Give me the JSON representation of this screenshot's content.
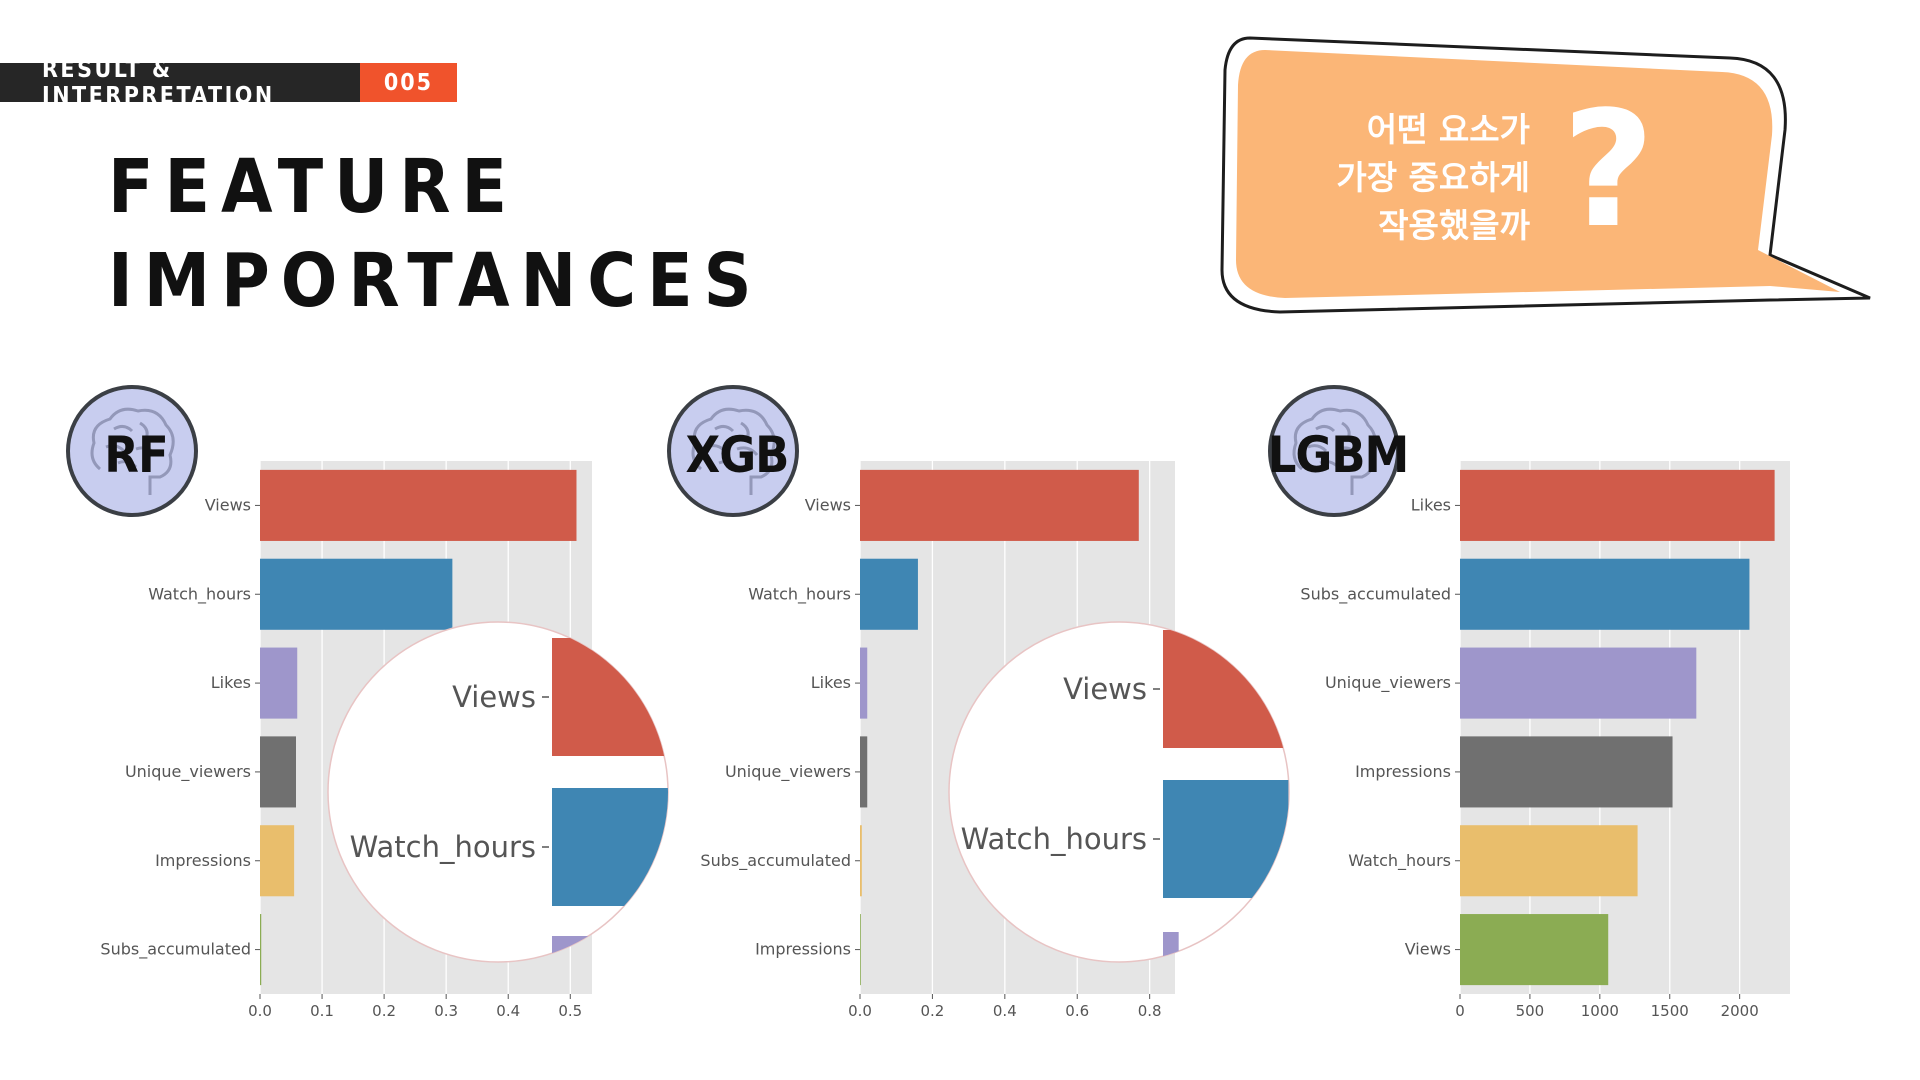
{
  "header": {
    "section_label": "RESULT & INTERPRETATION",
    "section_number": "005"
  },
  "title": {
    "line1": "FEATURE",
    "line2": "IMPORTANCES"
  },
  "speech_bubble": {
    "lines": [
      "어떤 요소가",
      "가장 중요하게",
      "작용했을까"
    ],
    "mark": "?",
    "color": "#fbb677"
  },
  "badges": [
    {
      "label": "RF",
      "icon": "brain-icon"
    },
    {
      "label": "XGB",
      "icon": "brain-icon"
    },
    {
      "label": "LGBM",
      "icon": "brain-icon"
    }
  ],
  "chart_data": [
    {
      "type": "bar",
      "orientation": "horizontal",
      "model": "RF",
      "categories": [
        "Views",
        "Watch_hours",
        "Likes",
        "Unique_viewers",
        "Impressions",
        "Subs_accumulated"
      ],
      "values": [
        0.51,
        0.31,
        0.06,
        0.058,
        0.055,
        0.002
      ],
      "colors": [
        "#d05b4a",
        "#3f86b3",
        "#9e96cb",
        "#707070",
        "#e9be6c",
        "#8bac53"
      ],
      "xlim": [
        0,
        0.535
      ],
      "xticks": [
        0.0,
        0.1,
        0.2,
        0.3,
        0.4,
        0.5
      ],
      "xtick_labels": [
        "0.0",
        "0.1",
        "0.2",
        "0.3",
        "0.4",
        "0.5"
      ],
      "grid": true,
      "zoom_inset": {
        "labels": [
          "Views",
          "Watch_hours"
        ]
      }
    },
    {
      "type": "bar",
      "orientation": "horizontal",
      "model": "XGB",
      "categories": [
        "Views",
        "Watch_hours",
        "Likes",
        "Unique_viewers",
        "Subs_accumulated",
        "Impressions"
      ],
      "values": [
        0.77,
        0.16,
        0.02,
        0.02,
        0.005,
        0.0
      ],
      "colors": [
        "#d05b4a",
        "#3f86b3",
        "#9e96cb",
        "#707070",
        "#e9be6c",
        "#8bac53"
      ],
      "xlim": [
        0,
        0.87
      ],
      "xticks": [
        0.0,
        0.2,
        0.4,
        0.6,
        0.8
      ],
      "xtick_labels": [
        "0.0",
        "0.2",
        "0.4",
        "0.6",
        "0.8"
      ],
      "grid": true,
      "zoom_inset": {
        "labels": [
          "Views",
          "Watch_hours"
        ]
      }
    },
    {
      "type": "bar",
      "orientation": "horizontal",
      "model": "LGBM",
      "categories": [
        "Likes",
        "Subs_accumulated",
        "Unique_viewers",
        "Impressions",
        "Watch_hours",
        "Views"
      ],
      "values": [
        2250,
        2070,
        1690,
        1520,
        1270,
        1060
      ],
      "colors": [
        "#d05b4a",
        "#3f86b3",
        "#9e96cb",
        "#707070",
        "#e9be6c",
        "#8bac53"
      ],
      "xlim": [
        0,
        2360
      ],
      "xticks": [
        0,
        500,
        1000,
        1500,
        2000
      ],
      "xtick_labels": [
        "0",
        "500",
        "1000",
        "1500",
        "2000"
      ],
      "grid": true
    }
  ]
}
